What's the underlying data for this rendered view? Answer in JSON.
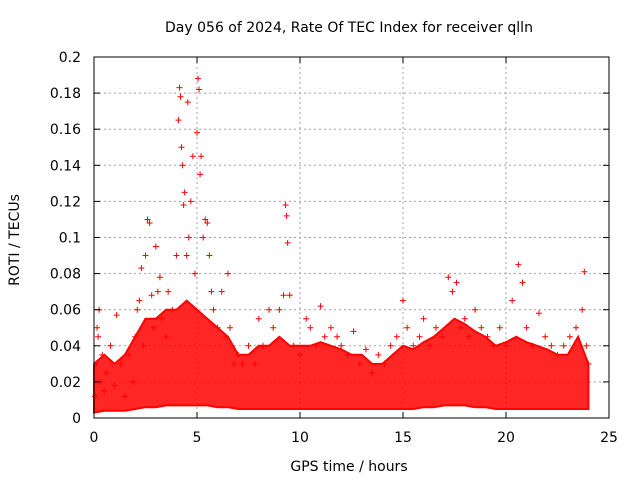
{
  "chart_data": {
    "type": "scatter",
    "title": "Day 056 of 2024, Rate Of TEC Index for receiver qlln",
    "xlabel": "GPS time / hours",
    "ylabel": "ROTI / TECUs",
    "xlim": [
      0,
      25
    ],
    "ylim": [
      0,
      0.2
    ],
    "x_ticks": [
      0,
      5,
      10,
      15,
      20,
      25
    ],
    "y_ticks": [
      0,
      0.02,
      0.04,
      0.06,
      0.08,
      0.1,
      0.12,
      0.14,
      0.16,
      0.18,
      0.2
    ],
    "x_tick_labels": [
      "0",
      "5",
      "10",
      "15",
      "20",
      "25"
    ],
    "y_tick_labels": [
      "0",
      "0.02",
      "0.04",
      "0.06",
      "0.08",
      "0.1",
      "0.12",
      "0.14",
      "0.16",
      "0.18",
      "0.2"
    ],
    "grid": true,
    "marker": "+",
    "marker_color": "#ff0000",
    "series": [
      {
        "points": [
          [
            0.05,
            0.012
          ],
          [
            0.1,
            0.03
          ],
          [
            0.15,
            0.05
          ],
          [
            0.2,
            0.045
          ],
          [
            0.25,
            0.06
          ],
          [
            0.3,
            0.02
          ],
          [
            0.4,
            0.035
          ],
          [
            0.5,
            0.015
          ],
          [
            0.6,
            0.025
          ],
          [
            0.8,
            0.04
          ],
          [
            1.0,
            0.018
          ],
          [
            1.1,
            0.057
          ],
          [
            1.3,
            0.03
          ],
          [
            1.5,
            0.012
          ],
          [
            1.7,
            0.035
          ],
          [
            1.9,
            0.02
          ],
          [
            2.0,
            0.045
          ],
          [
            2.1,
            0.06
          ],
          [
            2.2,
            0.065
          ],
          [
            2.3,
            0.083
          ],
          [
            2.4,
            0.04
          ],
          [
            2.5,
            0.09
          ],
          [
            2.6,
            0.11
          ],
          [
            2.7,
            0.108
          ],
          [
            2.8,
            0.068
          ],
          [
            2.9,
            0.05
          ],
          [
            3.0,
            0.095
          ],
          [
            3.1,
            0.07
          ],
          [
            3.2,
            0.078
          ],
          [
            3.3,
            0.055
          ],
          [
            3.5,
            0.045
          ],
          [
            3.6,
            0.07
          ],
          [
            3.8,
            0.06
          ],
          [
            4.0,
            0.09
          ],
          [
            4.1,
            0.165
          ],
          [
            4.15,
            0.183
          ],
          [
            4.2,
            0.178
          ],
          [
            4.25,
            0.15
          ],
          [
            4.3,
            0.14
          ],
          [
            4.35,
            0.118
          ],
          [
            4.4,
            0.125
          ],
          [
            4.5,
            0.09
          ],
          [
            4.55,
            0.175
          ],
          [
            4.6,
            0.1
          ],
          [
            4.7,
            0.12
          ],
          [
            4.8,
            0.145
          ],
          [
            4.9,
            0.08
          ],
          [
            5.0,
            0.158
          ],
          [
            5.05,
            0.188
          ],
          [
            5.1,
            0.182
          ],
          [
            5.15,
            0.135
          ],
          [
            5.2,
            0.145
          ],
          [
            5.3,
            0.1
          ],
          [
            5.4,
            0.11
          ],
          [
            5.5,
            0.108
          ],
          [
            5.6,
            0.09
          ],
          [
            5.7,
            0.07
          ],
          [
            5.8,
            0.06
          ],
          [
            6.0,
            0.05
          ],
          [
            6.2,
            0.07
          ],
          [
            6.4,
            0.045
          ],
          [
            6.5,
            0.08
          ],
          [
            6.6,
            0.05
          ],
          [
            6.8,
            0.03
          ],
          [
            7.0,
            0.035
          ],
          [
            7.2,
            0.03
          ],
          [
            7.5,
            0.04
          ],
          [
            7.8,
            0.03
          ],
          [
            8.0,
            0.055
          ],
          [
            8.2,
            0.04
          ],
          [
            8.5,
            0.06
          ],
          [
            8.7,
            0.05
          ],
          [
            9.0,
            0.06
          ],
          [
            9.2,
            0.068
          ],
          [
            9.3,
            0.118
          ],
          [
            9.35,
            0.112
          ],
          [
            9.4,
            0.097
          ],
          [
            9.5,
            0.068
          ],
          [
            9.7,
            0.04
          ],
          [
            10.0,
            0.035
          ],
          [
            10.3,
            0.055
          ],
          [
            10.5,
            0.05
          ],
          [
            10.8,
            0.04
          ],
          [
            11.0,
            0.062
          ],
          [
            11.2,
            0.045
          ],
          [
            11.5,
            0.05
          ],
          [
            11.8,
            0.045
          ],
          [
            12.0,
            0.04
          ],
          [
            12.3,
            0.035
          ],
          [
            12.6,
            0.048
          ],
          [
            12.9,
            0.03
          ],
          [
            13.2,
            0.038
          ],
          [
            13.5,
            0.025
          ],
          [
            13.8,
            0.035
          ],
          [
            14.1,
            0.03
          ],
          [
            14.4,
            0.04
          ],
          [
            14.7,
            0.045
          ],
          [
            15.0,
            0.065
          ],
          [
            15.2,
            0.05
          ],
          [
            15.5,
            0.04
          ],
          [
            15.8,
            0.045
          ],
          [
            16.0,
            0.055
          ],
          [
            16.3,
            0.04
          ],
          [
            16.6,
            0.05
          ],
          [
            16.9,
            0.045
          ],
          [
            17.2,
            0.078
          ],
          [
            17.4,
            0.07
          ],
          [
            17.6,
            0.075
          ],
          [
            17.8,
            0.05
          ],
          [
            18.0,
            0.055
          ],
          [
            18.2,
            0.045
          ],
          [
            18.5,
            0.06
          ],
          [
            18.8,
            0.05
          ],
          [
            19.1,
            0.045
          ],
          [
            19.4,
            0.04
          ],
          [
            19.7,
            0.05
          ],
          [
            20.0,
            0.04
          ],
          [
            20.3,
            0.065
          ],
          [
            20.6,
            0.085
          ],
          [
            20.8,
            0.075
          ],
          [
            21.0,
            0.05
          ],
          [
            21.3,
            0.04
          ],
          [
            21.6,
            0.058
          ],
          [
            21.9,
            0.045
          ],
          [
            22.2,
            0.04
          ],
          [
            22.5,
            0.035
          ],
          [
            22.8,
            0.04
          ],
          [
            23.1,
            0.045
          ],
          [
            23.4,
            0.05
          ],
          [
            23.7,
            0.06
          ],
          [
            23.8,
            0.081
          ],
          [
            23.9,
            0.04
          ],
          [
            24.0,
            0.03
          ]
        ]
      }
    ],
    "dense_band": {
      "color": "#ff0000",
      "profile": [
        [
          0.0,
          0.003,
          0.03
        ],
        [
          0.5,
          0.004,
          0.035
        ],
        [
          1.0,
          0.004,
          0.03
        ],
        [
          1.5,
          0.004,
          0.035
        ],
        [
          2.0,
          0.005,
          0.045
        ],
        [
          2.5,
          0.006,
          0.055
        ],
        [
          3.0,
          0.006,
          0.055
        ],
        [
          3.5,
          0.007,
          0.06
        ],
        [
          4.0,
          0.007,
          0.06
        ],
        [
          4.5,
          0.007,
          0.065
        ],
        [
          5.0,
          0.007,
          0.06
        ],
        [
          5.5,
          0.007,
          0.055
        ],
        [
          6.0,
          0.006,
          0.05
        ],
        [
          6.5,
          0.006,
          0.045
        ],
        [
          7.0,
          0.005,
          0.035
        ],
        [
          7.5,
          0.005,
          0.035
        ],
        [
          8.0,
          0.005,
          0.04
        ],
        [
          8.5,
          0.005,
          0.04
        ],
        [
          9.0,
          0.005,
          0.045
        ],
        [
          9.5,
          0.005,
          0.04
        ],
        [
          10.0,
          0.005,
          0.04
        ],
        [
          10.5,
          0.005,
          0.04
        ],
        [
          11.0,
          0.005,
          0.042
        ],
        [
          11.5,
          0.005,
          0.04
        ],
        [
          12.0,
          0.005,
          0.038
        ],
        [
          12.5,
          0.005,
          0.035
        ],
        [
          13.0,
          0.005,
          0.035
        ],
        [
          13.5,
          0.005,
          0.03
        ],
        [
          14.0,
          0.005,
          0.03
        ],
        [
          14.5,
          0.005,
          0.035
        ],
        [
          15.0,
          0.005,
          0.04
        ],
        [
          15.5,
          0.005,
          0.038
        ],
        [
          16.0,
          0.006,
          0.042
        ],
        [
          16.5,
          0.006,
          0.045
        ],
        [
          17.0,
          0.007,
          0.05
        ],
        [
          17.5,
          0.007,
          0.055
        ],
        [
          18.0,
          0.007,
          0.052
        ],
        [
          18.5,
          0.006,
          0.048
        ],
        [
          19.0,
          0.006,
          0.045
        ],
        [
          19.5,
          0.005,
          0.04
        ],
        [
          20.0,
          0.005,
          0.042
        ],
        [
          20.5,
          0.005,
          0.045
        ],
        [
          21.0,
          0.005,
          0.042
        ],
        [
          21.5,
          0.005,
          0.04
        ],
        [
          22.0,
          0.005,
          0.038
        ],
        [
          22.5,
          0.005,
          0.035
        ],
        [
          23.0,
          0.005,
          0.035
        ],
        [
          23.5,
          0.005,
          0.045
        ],
        [
          24.0,
          0.005,
          0.03
        ]
      ]
    }
  }
}
